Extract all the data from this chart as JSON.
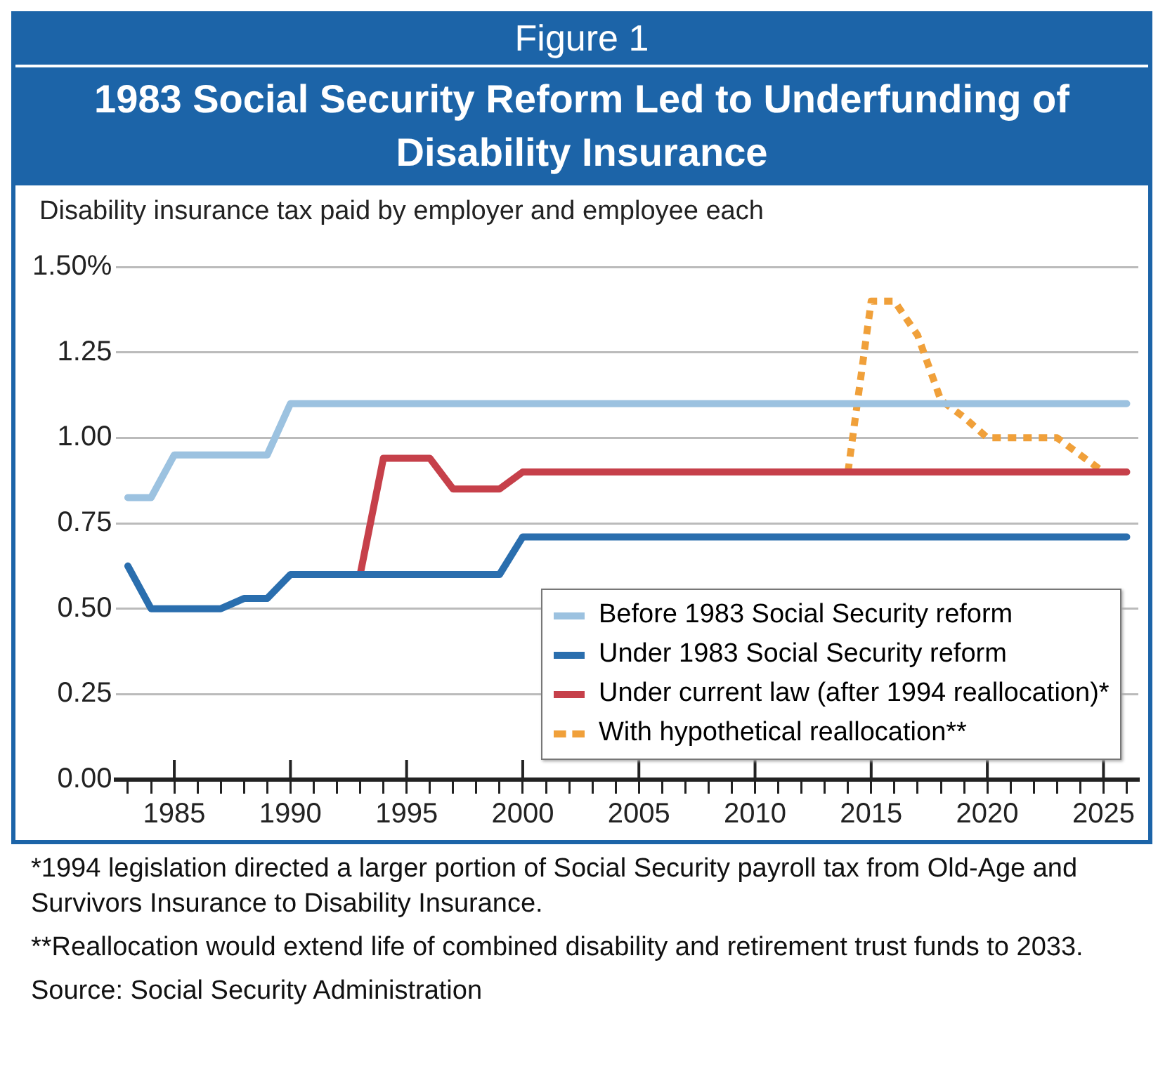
{
  "chart_data": {
    "type": "line",
    "subtitle": "Figure 1",
    "title": "1983 Social Security Reform Led to Underfunding of Disability Insurance",
    "ylabel": "Disability insurance tax paid by employer and employee each",
    "xlim": [
      1982.5,
      2026.5
    ],
    "xticks": [
      {
        "value": 1983,
        "label": null
      },
      {
        "value": 1984,
        "label": null
      },
      1985,
      {
        "value": 1986,
        "label": null
      },
      {
        "value": 1987,
        "label": null
      },
      {
        "value": 1988,
        "label": null
      },
      {
        "value": 1989,
        "label": null
      },
      1990,
      {
        "value": 1991,
        "label": null
      },
      {
        "value": 1992,
        "label": null
      },
      {
        "value": 1993,
        "label": null
      },
      {
        "value": 1994,
        "label": null
      },
      1995,
      {
        "value": 1996,
        "label": null
      },
      {
        "value": 1997,
        "label": null
      },
      {
        "value": 1998,
        "label": null
      },
      {
        "value": 1999,
        "label": null
      },
      2000,
      {
        "value": 2001,
        "label": null
      },
      {
        "value": 2002,
        "label": null
      },
      {
        "value": 2003,
        "label": null
      },
      {
        "value": 2004,
        "label": null
      },
      2005,
      {
        "value": 2006,
        "label": null
      },
      {
        "value": 2007,
        "label": null
      },
      {
        "value": 2008,
        "label": null
      },
      {
        "value": 2009,
        "label": null
      },
      2010,
      {
        "value": 2011,
        "label": null
      },
      {
        "value": 2012,
        "label": null
      },
      {
        "value": 2013,
        "label": null
      },
      {
        "value": 2014,
        "label": null
      },
      2015,
      {
        "value": 2016,
        "label": null
      },
      {
        "value": 2017,
        "label": null
      },
      {
        "value": 2018,
        "label": null
      },
      {
        "value": 2019,
        "label": null
      },
      2020,
      {
        "value": 2021,
        "label": null
      },
      {
        "value": 2022,
        "label": null
      },
      {
        "value": 2023,
        "label": null
      },
      {
        "value": 2024,
        "label": null
      },
      2025,
      {
        "value": 2026,
        "label": null
      }
    ],
    "ylim": [
      0,
      1.5
    ],
    "yticks": [
      {
        "value": 0,
        "label": "0.00"
      },
      {
        "value": 0.25,
        "label": "0.25"
      },
      {
        "value": 0.5,
        "label": "0.50"
      },
      {
        "value": 0.75,
        "label": "0.75"
      },
      {
        "value": 1,
        "label": "1.00"
      },
      {
        "value": 1.25,
        "label": "1.25"
      },
      {
        "value": 1.5,
        "label": "1.50%"
      }
    ],
    "grid": "y",
    "legend": "bottom right",
    "marker": "none",
    "series": [
      {
        "name": "Before 1983 Social Security reform",
        "color": "#9cc2e0",
        "x": [
          1983,
          1984,
          1985,
          1989,
          1990,
          2026
        ],
        "values": [
          0.825,
          0.825,
          0.95,
          0.95,
          1.1,
          1.1
        ]
      },
      {
        "name": "Under 1983 Social Security reform",
        "color": "#2a6eae",
        "x": [
          1983,
          1984,
          1987,
          1988,
          1989,
          1990,
          1999,
          2000,
          2026
        ],
        "values": [
          0.625,
          0.5,
          0.5,
          0.53,
          0.53,
          0.6,
          0.6,
          0.71,
          0.71
        ]
      },
      {
        "name": "Under current law (after 1994 reallocation)*",
        "color": "#c6404a",
        "x": [
          1993,
          1994,
          1996,
          1997,
          1999,
          2000,
          2026
        ],
        "values": [
          0.6,
          0.94,
          0.94,
          0.85,
          0.85,
          0.9,
          0.9
        ]
      },
      {
        "name": "With hypothetical reallocation**",
        "color": "#f0a03a",
        "line_style": "dashed",
        "x": [
          2014,
          2015,
          2016,
          2017,
          2018,
          2019,
          2020,
          2023,
          2024,
          2025
        ],
        "values": [
          0.9,
          1.4,
          1.4,
          1.3,
          1.11,
          1.06,
          1.0,
          1.0,
          0.95,
          0.9
        ]
      }
    ],
    "annotations": [
      "*1994 legislation directed a larger portion of Social Security payroll tax from Old-Age and Survivors Insurance to Disability Insurance.",
      "**Reallocation would extend life of combined disability and retirement trust funds to 2033.",
      "Source: Social Security Administration"
    ]
  }
}
